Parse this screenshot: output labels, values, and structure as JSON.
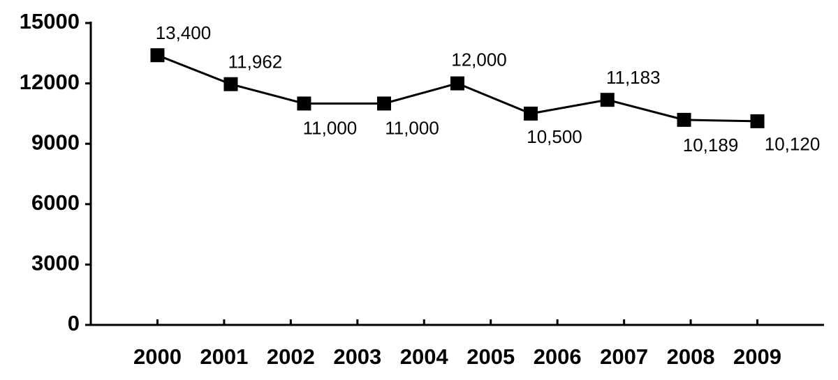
{
  "chart_data": {
    "type": "line",
    "x": [
      2000,
      2001.1,
      2002.2,
      2003.4,
      2004.5,
      2005.6,
      2006.75,
      2007.9,
      2009
    ],
    "series": [
      {
        "color": "#000000",
        "values": [
          13400,
          11962,
          11000,
          11000,
          12000,
          10500,
          11183,
          10189,
          10120
        ],
        "value_labels": [
          "13,400",
          "11,962",
          "11,000",
          "11,000",
          "12,000",
          "10,500",
          "11,183",
          "10,189",
          "10,120"
        ]
      }
    ],
    "xlim": [
      1999,
      2010
    ],
    "xticks": [
      2000,
      2001,
      2002,
      2003,
      2004,
      2005,
      2006,
      2007,
      2008,
      2009
    ],
    "ylim": [
      0,
      15000
    ],
    "yticks": [
      0,
      3000,
      6000,
      9000,
      12000,
      15000
    ]
  }
}
